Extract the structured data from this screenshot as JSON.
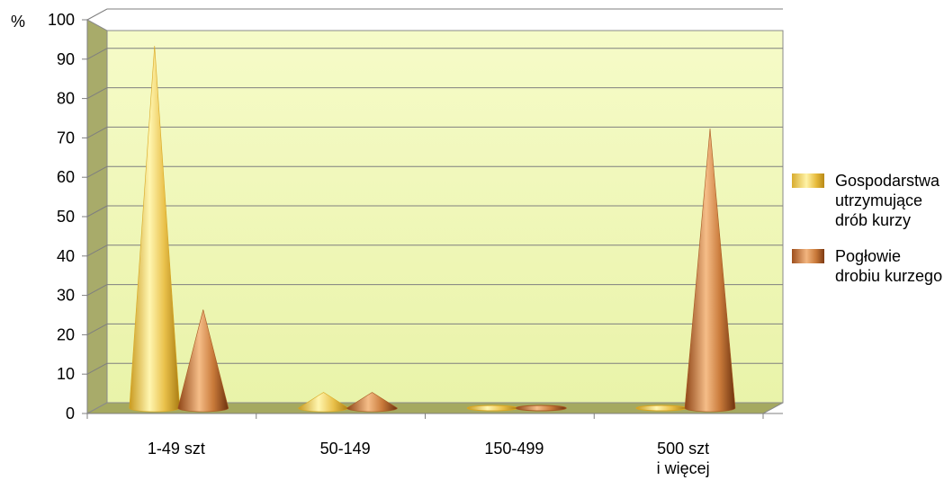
{
  "chart_data": {
    "type": "bar",
    "shape": "cone",
    "y_unit_label": "%",
    "ylim": [
      0,
      100
    ],
    "yticks": [
      "0",
      "10",
      "20",
      "30",
      "40",
      "50",
      "60",
      "70",
      "80",
      "90",
      "100"
    ],
    "categories": [
      [
        "1-49 szt"
      ],
      [
        "50-149"
      ],
      [
        "150-499"
      ],
      [
        "500 szt",
        "i więcej"
      ]
    ],
    "series": [
      {
        "name_lines": [
          "Gospodarstwa",
          "utrzymujące",
          "drób kurzy"
        ],
        "color": "#e8bd3c",
        "values": [
          92,
          4,
          0.3,
          0.2
        ]
      },
      {
        "name_lines": [
          "Pogłowie",
          "drobiu kurzego"
        ],
        "color": "#c46a2c",
        "values": [
          25,
          4,
          0.3,
          71
        ]
      }
    ],
    "grid": true,
    "legend_position": "right"
  }
}
